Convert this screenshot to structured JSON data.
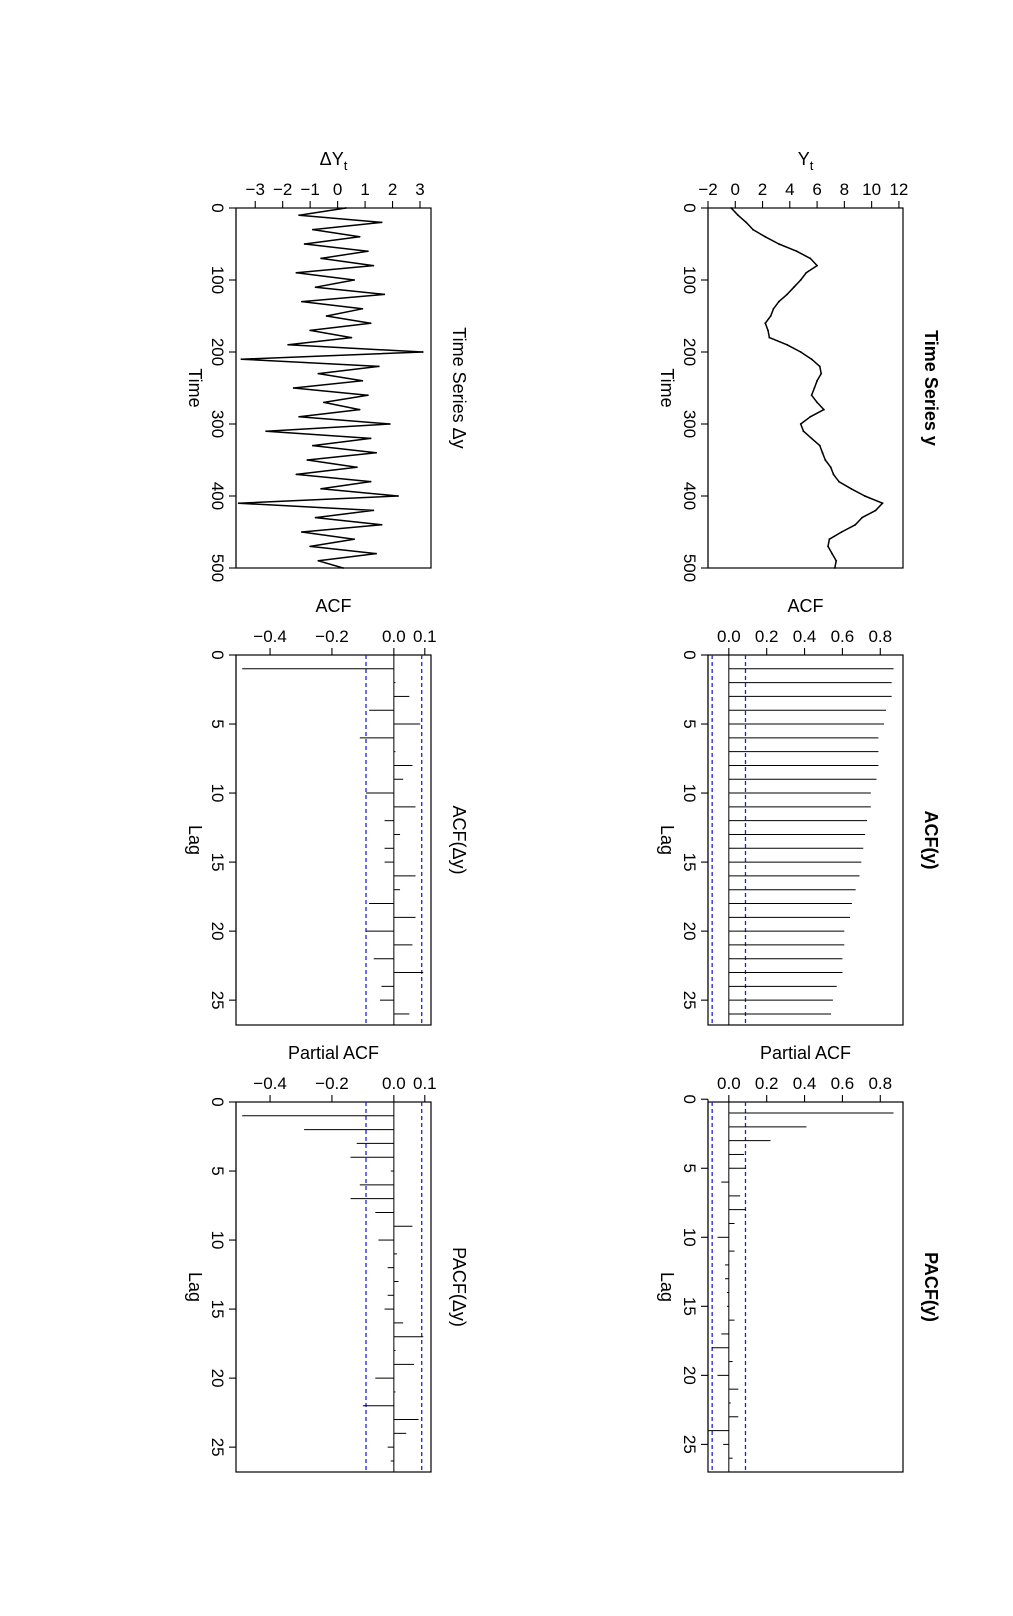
{
  "figure": {
    "orientation": "rotated 90 degrees clockwise",
    "colors": {
      "series": "#000000",
      "confidence_band": "#1f1fe0",
      "axis": "#000000"
    }
  },
  "chart_data": [
    {
      "id": "ts_y",
      "type": "line",
      "title": "Time Series y",
      "title_bold": true,
      "xlabel": "Time",
      "ylabel": "Yt",
      "ylabel_main": "Y",
      "ylabel_sub": "t",
      "xlim": [
        0,
        500
      ],
      "ylim": [
        -2,
        12.3
      ],
      "xticks": [
        0,
        100,
        200,
        300,
        400,
        500
      ],
      "xtick_labels": [
        "0",
        "100",
        "200",
        "300",
        "400",
        "500"
      ],
      "yticks": [
        -2,
        0,
        2,
        4,
        6,
        8,
        10,
        12
      ],
      "ytick_labels": [
        "−2",
        "0",
        "2",
        "4",
        "6",
        "8",
        "10",
        "12"
      ],
      "x": [
        0,
        10,
        20,
        30,
        40,
        50,
        60,
        70,
        80,
        90,
        100,
        110,
        120,
        130,
        140,
        150,
        160,
        170,
        180,
        190,
        200,
        210,
        220,
        230,
        240,
        250,
        260,
        270,
        280,
        290,
        300,
        310,
        320,
        330,
        340,
        350,
        360,
        370,
        380,
        390,
        400,
        410,
        420,
        430,
        440,
        450,
        460,
        470,
        480,
        490,
        500
      ],
      "y": [
        -0.3,
        0.2,
        0.8,
        1.3,
        2.2,
        3.2,
        4.5,
        5.5,
        6.0,
        5.2,
        4.8,
        4.3,
        3.8,
        3.2,
        2.8,
        2.6,
        2.2,
        2.4,
        2.5,
        3.8,
        4.8,
        5.6,
        6.2,
        6.3,
        6.0,
        5.8,
        5.6,
        6.0,
        6.5,
        5.5,
        4.8,
        5.0,
        5.6,
        6.2,
        6.4,
        6.6,
        7.0,
        7.2,
        7.6,
        8.5,
        9.5,
        10.8,
        10.3,
        9.3,
        8.8,
        7.8,
        6.9,
        6.8,
        7.1,
        7.4,
        7.3
      ]
    },
    {
      "id": "acf_y",
      "type": "bar",
      "title": "ACF(y)",
      "title_bold": true,
      "xlabel": "Lag",
      "ylabel": "ACF",
      "xlim": [
        0,
        26.8
      ],
      "ylim": [
        -0.11,
        0.92
      ],
      "xticks": [
        0,
        5,
        10,
        15,
        20,
        25
      ],
      "xtick_labels": [
        "0",
        "5",
        "10",
        "15",
        "20",
        "25"
      ],
      "yticks": [
        0.0,
        0.2,
        0.4,
        0.6,
        0.8
      ],
      "ytick_labels": [
        "0.0",
        "0.2",
        "0.4",
        "0.6",
        "0.8"
      ],
      "lags": [
        1,
        2,
        3,
        4,
        5,
        6,
        7,
        8,
        9,
        10,
        11,
        12,
        13,
        14,
        15,
        16,
        17,
        18,
        19,
        20,
        21,
        22,
        23,
        24,
        25,
        26
      ],
      "values": [
        0.87,
        0.86,
        0.86,
        0.83,
        0.82,
        0.79,
        0.79,
        0.79,
        0.78,
        0.75,
        0.75,
        0.73,
        0.72,
        0.71,
        0.7,
        0.69,
        0.67,
        0.65,
        0.64,
        0.61,
        0.61,
        0.6,
        0.6,
        0.57,
        0.55,
        0.54
      ],
      "conf": 0.088,
      "conf_lines": [
        -0.088,
        0.088
      ],
      "zero_line": true
    },
    {
      "id": "pacf_y",
      "type": "bar",
      "title": "PACF(y)",
      "title_bold": true,
      "xlabel": "Lag",
      "ylabel": "Partial ACF",
      "xlim": [
        0.2,
        27
      ],
      "ylim": [
        -0.11,
        0.92
      ],
      "xticks": [
        0,
        5,
        10,
        15,
        20,
        25
      ],
      "xtick_labels": [
        "0",
        "5",
        "10",
        "15",
        "20",
        "25"
      ],
      "yticks": [
        0.0,
        0.2,
        0.4,
        0.6,
        0.8
      ],
      "ytick_labels": [
        "0.0",
        "0.2",
        "0.4",
        "0.6",
        "0.8"
      ],
      "lags": [
        1,
        2,
        3,
        4,
        5,
        6,
        7,
        8,
        9,
        10,
        11,
        12,
        13,
        14,
        15,
        16,
        17,
        18,
        19,
        20,
        21,
        22,
        23,
        24,
        25,
        26
      ],
      "values": [
        0.87,
        0.41,
        0.22,
        0.08,
        0.09,
        -0.04,
        0.06,
        0.09,
        0.03,
        -0.06,
        0.03,
        -0.02,
        -0.02,
        -0.01,
        -0.01,
        0.03,
        -0.04,
        -0.09,
        0.02,
        -0.06,
        0.05,
        0.01,
        0.05,
        -0.11,
        -0.03,
        0.02
      ],
      "conf": 0.088,
      "conf_lines": [
        -0.088,
        0.088
      ],
      "zero_line": true
    },
    {
      "id": "ts_dy",
      "type": "line",
      "title": "Time Series Δy",
      "title_bold": false,
      "xlabel": "Time",
      "ylabel": "ΔYt",
      "ylabel_main": "ΔY",
      "ylabel_sub": "t",
      "xlim": [
        0,
        500
      ],
      "ylim": [
        -3.7,
        3.4
      ],
      "xticks": [
        0,
        100,
        200,
        300,
        400,
        500
      ],
      "xtick_labels": [
        "0",
        "100",
        "200",
        "300",
        "400",
        "500"
      ],
      "yticks": [
        -3,
        -2,
        -1,
        0,
        1,
        2,
        3
      ],
      "ytick_labels": [
        "−3",
        "−2",
        "−1",
        "0",
        "1",
        "2",
        "3"
      ],
      "x": [
        0,
        10,
        20,
        30,
        40,
        50,
        60,
        70,
        80,
        90,
        100,
        110,
        120,
        130,
        140,
        150,
        160,
        170,
        180,
        190,
        200,
        210,
        220,
        230,
        240,
        250,
        260,
        270,
        280,
        290,
        300,
        310,
        320,
        330,
        340,
        350,
        360,
        370,
        380,
        390,
        400,
        410,
        420,
        430,
        440,
        450,
        460,
        470,
        480,
        490,
        500
      ],
      "y": [
        0.3,
        -1.4,
        1.6,
        -0.9,
        0.8,
        -1.2,
        1.1,
        -0.6,
        1.3,
        -1.5,
        0.6,
        -0.8,
        1.7,
        -1.3,
        0.9,
        -0.4,
        1.2,
        -1.0,
        0.5,
        -1.8,
        3.1,
        -3.5,
        1.5,
        -0.7,
        0.9,
        -1.6,
        1.1,
        -0.5,
        0.8,
        -1.4,
        1.9,
        -2.6,
        1.2,
        -0.9,
        1.4,
        -1.1,
        0.7,
        -1.5,
        1.2,
        -0.6,
        2.2,
        -3.6,
        1.3,
        -0.8,
        1.6,
        -1.3,
        0.6,
        -1.0,
        1.4,
        -0.7,
        0.2
      ]
    },
    {
      "id": "acf_dy",
      "type": "bar",
      "title": "ACF(Δy)",
      "title_bold": false,
      "xlabel": "Lag",
      "ylabel": "ACF",
      "xlim": [
        0,
        26.8
      ],
      "ylim": [
        -0.51,
        0.12
      ],
      "xticks": [
        0,
        5,
        10,
        15,
        20,
        25
      ],
      "xtick_labels": [
        "0",
        "5",
        "10",
        "15",
        "20",
        "25"
      ],
      "yticks": [
        -0.4,
        -0.2,
        0.0,
        0.1
      ],
      "ytick_labels": [
        "−0.4",
        "−0.2",
        "0.0",
        "0.1"
      ],
      "lags": [
        1,
        2,
        3,
        4,
        5,
        6,
        7,
        8,
        9,
        10,
        11,
        12,
        13,
        14,
        15,
        16,
        17,
        18,
        19,
        20,
        21,
        22,
        23,
        24,
        25,
        26
      ],
      "values": [
        -0.49,
        0.005,
        0.05,
        -0.08,
        0.085,
        -0.11,
        0.005,
        0.06,
        0.03,
        -0.09,
        0.07,
        -0.03,
        0.02,
        -0.03,
        -0.03,
        0.07,
        0.02,
        -0.08,
        0.07,
        -0.09,
        0.06,
        -0.065,
        0.095,
        -0.04,
        -0.045,
        0.05
      ],
      "conf": 0.09,
      "conf_lines": [
        -0.09,
        0.09
      ],
      "zero_line": true
    },
    {
      "id": "pacf_dy",
      "type": "bar",
      "title": "PACF(Δy)",
      "title_bold": false,
      "xlabel": "Lag",
      "ylabel": "Partial ACF",
      "xlim": [
        0,
        26.8
      ],
      "ylim": [
        -0.51,
        0.12
      ],
      "xticks": [
        0,
        5,
        10,
        15,
        20,
        25
      ],
      "xtick_labels": [
        "0",
        "5",
        "10",
        "15",
        "20",
        "25"
      ],
      "yticks": [
        -0.4,
        -0.2,
        0.0,
        0.1
      ],
      "ytick_labels": [
        "−0.4",
        "−0.2",
        "0.0",
        "0.1"
      ],
      "lags": [
        1,
        2,
        3,
        4,
        5,
        6,
        7,
        8,
        9,
        10,
        11,
        12,
        13,
        14,
        15,
        16,
        17,
        18,
        19,
        20,
        21,
        22,
        23,
        24,
        25,
        26
      ],
      "values": [
        -0.49,
        -0.29,
        -0.12,
        -0.14,
        -0.01,
        -0.11,
        -0.14,
        -0.06,
        0.06,
        -0.05,
        0.01,
        -0.02,
        0.015,
        -0.02,
        -0.03,
        0.03,
        0.095,
        0.005,
        0.065,
        -0.06,
        0.005,
        -0.1,
        0.08,
        0.04,
        -0.02,
        -0.01
      ],
      "conf": 0.09,
      "conf_lines": [
        -0.09,
        0.09
      ],
      "zero_line": true
    }
  ]
}
